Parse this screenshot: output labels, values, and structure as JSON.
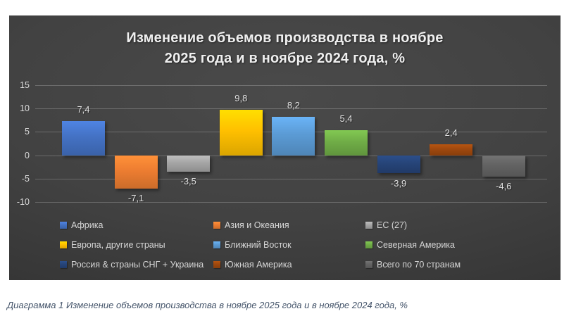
{
  "chart": {
    "title_line1": "Изменение объемов производства в ноябре",
    "title_line2": "2025 года и в ноябре 2024 года, %"
  },
  "caption": {
    "text": "Диаграмма 1 Изменение объемов производства в ноябре 2025 года и в ноябре 2024 года, %"
  },
  "chart_data": {
    "type": "bar",
    "title": "Изменение объемов производства в ноябре 2025 года и в ноябре 2024 года, %",
    "categories": [
      "Африка",
      "Азия и Океания",
      "ЕС (27)",
      "Европа, другие страны",
      "Ближний Восток",
      "Северная Америка",
      "Россия & страны СНГ + Украина",
      "Южная Америка",
      "Всего по 70 странам"
    ],
    "values": [
      7.4,
      -7.1,
      -3.5,
      9.8,
      8.2,
      5.4,
      -3.9,
      2.4,
      -4.6
    ],
    "value_labels": [
      "7,4",
      "-7,1",
      "-3,5",
      "9,8",
      "8,2",
      "5,4",
      "-3,9",
      "2,4",
      "-4,6"
    ],
    "colors": [
      "#4472C4",
      "#ED7D31",
      "#A5A5A5",
      "#FFC000",
      "#5B9BD5",
      "#70AD47",
      "#264478",
      "#9E480E",
      "#636363"
    ],
    "yticks": [
      15,
      10,
      5,
      0,
      -5,
      -10
    ],
    "ytick_labels": [
      "15",
      "10",
      "5",
      "0",
      "-5",
      "-10"
    ],
    "ylim": [
      -10,
      15
    ],
    "xlabel": "",
    "ylabel": "",
    "grid": true,
    "legend_position": "bottom",
    "background": "dark-gradient",
    "plot_bg_color": "#424242",
    "text_color": "#d9d9d9",
    "caption_color": "#44546a"
  }
}
